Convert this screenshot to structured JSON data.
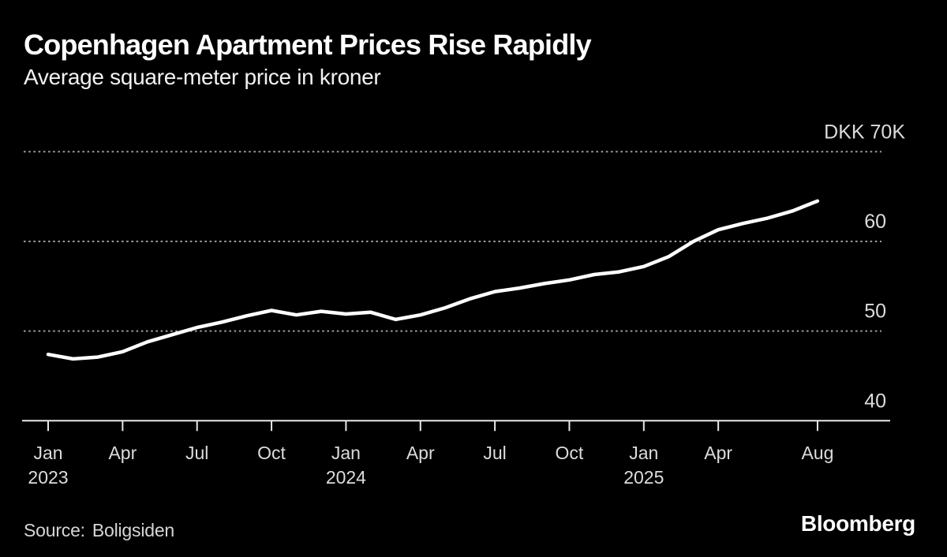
{
  "header": {
    "title": "Copenhagen Apartment Prices Rise Rapidly",
    "subtitle": "Average square-meter price in kroner"
  },
  "footer": {
    "source_label": "Source:",
    "source_name": "Boligsiden",
    "brand": "Bloomberg"
  },
  "colors": {
    "background": "#000000",
    "line": "#ffffff",
    "gridline": "#9a9a9a",
    "axis": "#e8e8e8",
    "tick_text": "#dcdcdc"
  },
  "chart_data": {
    "type": "line",
    "title": "Copenhagen Apartment Prices Rise Rapidly",
    "subtitle": "Average square-meter price in kroner",
    "unit": "DKK thousands per square meter",
    "frequency": "monthly",
    "x_start": "Jan 2023",
    "x_end": "Aug 2025",
    "grid": "horizontal-dotted",
    "ylim": [
      40,
      73
    ],
    "months": [
      "Jan 2023",
      "Feb 2023",
      "Mar 2023",
      "Apr 2023",
      "May 2023",
      "Jun 2023",
      "Jul 2023",
      "Aug 2023",
      "Sep 2023",
      "Oct 2023",
      "Nov 2023",
      "Dec 2023",
      "Jan 2024",
      "Feb 2024",
      "Mar 2024",
      "Apr 2024",
      "May 2024",
      "Jun 2024",
      "Jul 2024",
      "Aug 2024",
      "Sep 2024",
      "Oct 2024",
      "Nov 2024",
      "Dec 2024",
      "Jan 2025",
      "Feb 2025",
      "Mar 2025",
      "Apr 2025",
      "May 2025",
      "Jun 2025",
      "Jul 2025",
      "Aug 2025"
    ],
    "series": [
      {
        "name": "Average square-meter price (DKK thousands)",
        "color": "#ffffff",
        "values": [
          47.4,
          46.9,
          47.1,
          47.7,
          48.8,
          49.6,
          50.4,
          51.0,
          51.7,
          52.3,
          51.8,
          52.2,
          51.9,
          52.1,
          51.3,
          51.8,
          52.6,
          53.6,
          54.4,
          54.8,
          55.3,
          55.7,
          56.3,
          56.6,
          57.2,
          58.3,
          60.0,
          61.3,
          62.0,
          62.6,
          63.4,
          64.5
        ]
      }
    ],
    "y_ticks": [
      {
        "value": 70,
        "label": "DKK 70K",
        "is_unit_label": true,
        "gridline": true
      },
      {
        "value": 60,
        "label": "60",
        "is_unit_label": false,
        "gridline": true
      },
      {
        "value": 50,
        "label": "50",
        "is_unit_label": false,
        "gridline": true
      },
      {
        "value": 40,
        "label": "40",
        "is_unit_label": false,
        "gridline": false
      }
    ],
    "x_ticks": [
      {
        "month_index": 0,
        "label": "Jan",
        "year": "2023"
      },
      {
        "month_index": 3,
        "label": "Apr"
      },
      {
        "month_index": 6,
        "label": "Jul"
      },
      {
        "month_index": 9,
        "label": "Oct"
      },
      {
        "month_index": 12,
        "label": "Jan",
        "year": "2024"
      },
      {
        "month_index": 15,
        "label": "Apr"
      },
      {
        "month_index": 18,
        "label": "Jul"
      },
      {
        "month_index": 21,
        "label": "Oct"
      },
      {
        "month_index": 24,
        "label": "Jan",
        "year": "2025"
      },
      {
        "month_index": 27,
        "label": "Apr"
      },
      {
        "month_index": 31,
        "label": "Aug"
      }
    ]
  }
}
